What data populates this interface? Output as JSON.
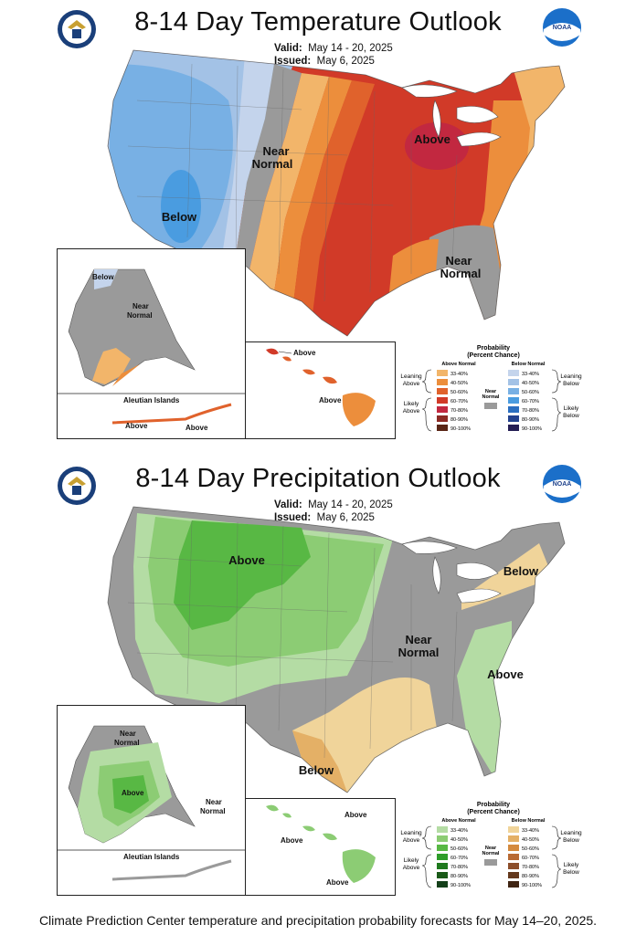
{
  "temperature": {
    "title": "8-14 Day Temperature Outlook",
    "valid_label": "Valid:",
    "valid_value": "May 14 - 20, 2025",
    "issued_label": "Issued:",
    "issued_value": "May 6, 2025",
    "map_labels": {
      "near_normal_west": "Near",
      "near_normal_west2": "Normal",
      "below": "Below",
      "above_michigan": "Above",
      "near_normal_se": "Near",
      "near_normal_se2": "Normal"
    },
    "alaska": {
      "below": "Below",
      "near": "Near",
      "near2": "Normal",
      "aleutian": "Aleutian Islands",
      "above1": "Above",
      "above2": "Above"
    },
    "hawaii": {
      "above1": "Above",
      "above2": "Above"
    },
    "legend": {
      "title": "Probability",
      "subtitle": "(Percent Chance)",
      "above_header": "Above Normal",
      "below_header": "Below Normal",
      "leaning_above": "Leaning",
      "leaning_above2": "Above",
      "likely_above": "Likely",
      "likely_above2": "Above",
      "leaning_below": "Leaning",
      "leaning_below2": "Below",
      "likely_below": "Likely",
      "likely_below2": "Below",
      "near": "Near",
      "near2": "Normal",
      "ranges": [
        "33-40%",
        "40-50%",
        "50-60%",
        "60-70%",
        "70-80%",
        "80-90%",
        "90-100%"
      ],
      "above_colors": [
        "#f2b56a",
        "#ec8e3c",
        "#e0622c",
        "#d13a28",
        "#c22840",
        "#8c2a24",
        "#5a2616"
      ],
      "below_colors": [
        "#c4d4ec",
        "#a3c2e6",
        "#78b0e4",
        "#4a9ce0",
        "#2b6fc0",
        "#23428e",
        "#251e54"
      ]
    }
  },
  "precipitation": {
    "title": "8-14 Day Precipitation Outlook",
    "valid_label": "Valid:",
    "valid_value": "May 14 - 20, 2025",
    "issued_label": "Issued:",
    "issued_value": "May 6, 2025",
    "map_labels": {
      "above_nw": "Above",
      "below_ne": "Below",
      "near": "Near",
      "near2": "Normal",
      "above_se": "Above",
      "below_tx": "Below"
    },
    "alaska": {
      "near": "Near",
      "near2": "Normal",
      "above": "Above",
      "near_b": "Near",
      "near_b2": "Normal",
      "aleutian": "Aleutian Islands"
    },
    "hawaii": {
      "above1": "Above",
      "above2": "Above",
      "above3": "Above"
    },
    "legend": {
      "title": "Probability",
      "subtitle": "(Percent Chance)",
      "above_header": "Above Normal",
      "below_header": "Below Normal",
      "leaning_above": "Leaning",
      "leaning_above2": "Above",
      "likely_above": "Likely",
      "likely_above2": "Above",
      "leaning_below": "Leaning",
      "leaning_below2": "Below",
      "likely_below": "Likely",
      "likely_below2": "Below",
      "near": "Near",
      "near2": "Normal",
      "ranges": [
        "33-40%",
        "40-50%",
        "50-60%",
        "60-70%",
        "70-80%",
        "80-90%",
        "90-100%"
      ],
      "above_colors": [
        "#b4dca4",
        "#8ccc74",
        "#58b844",
        "#2f9d2a",
        "#1f7a1e",
        "#1a5a18",
        "#14401a"
      ],
      "below_colors": [
        "#f0d49a",
        "#e4b066",
        "#d48a3e",
        "#b86a34",
        "#8c4e2a",
        "#64381c",
        "#3f2412"
      ]
    }
  },
  "caption": "Climate Prediction Center temperature and precipitation probability forecasts for May 14–20, 2025."
}
